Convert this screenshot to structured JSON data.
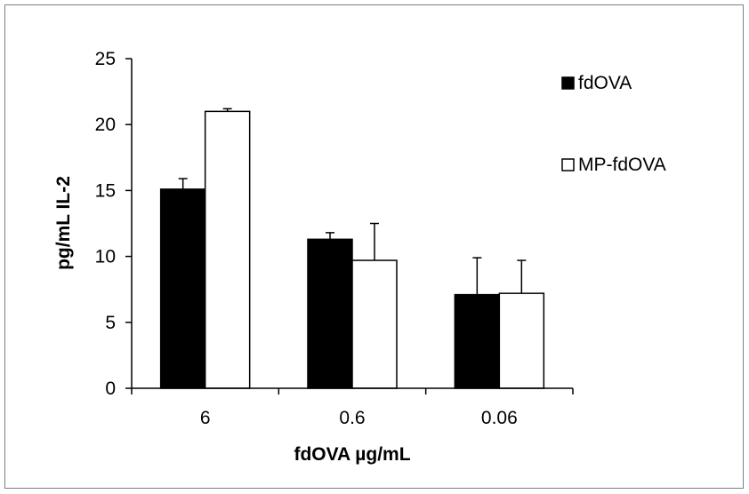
{
  "chart_data": {
    "type": "bar",
    "xlabel": "fdOVA µg/mL",
    "ylabel": "pg/mL IL-2",
    "categories": [
      "6",
      "0.6",
      "0.06"
    ],
    "ylim": [
      0,
      25
    ],
    "yticks": [
      0,
      5,
      10,
      15,
      20,
      25
    ],
    "grid": false,
    "legend_position": "top-right",
    "series": [
      {
        "name": "fdOVA",
        "values": [
          15.1,
          11.3,
          7.1
        ],
        "errors": [
          0.8,
          0.5,
          2.8
        ],
        "fill": "#000000"
      },
      {
        "name": "MP-fdOVA",
        "values": [
          21.0,
          9.7,
          7.2
        ],
        "errors": [
          0.2,
          2.8,
          2.5
        ],
        "fill": "#ffffff"
      }
    ]
  }
}
